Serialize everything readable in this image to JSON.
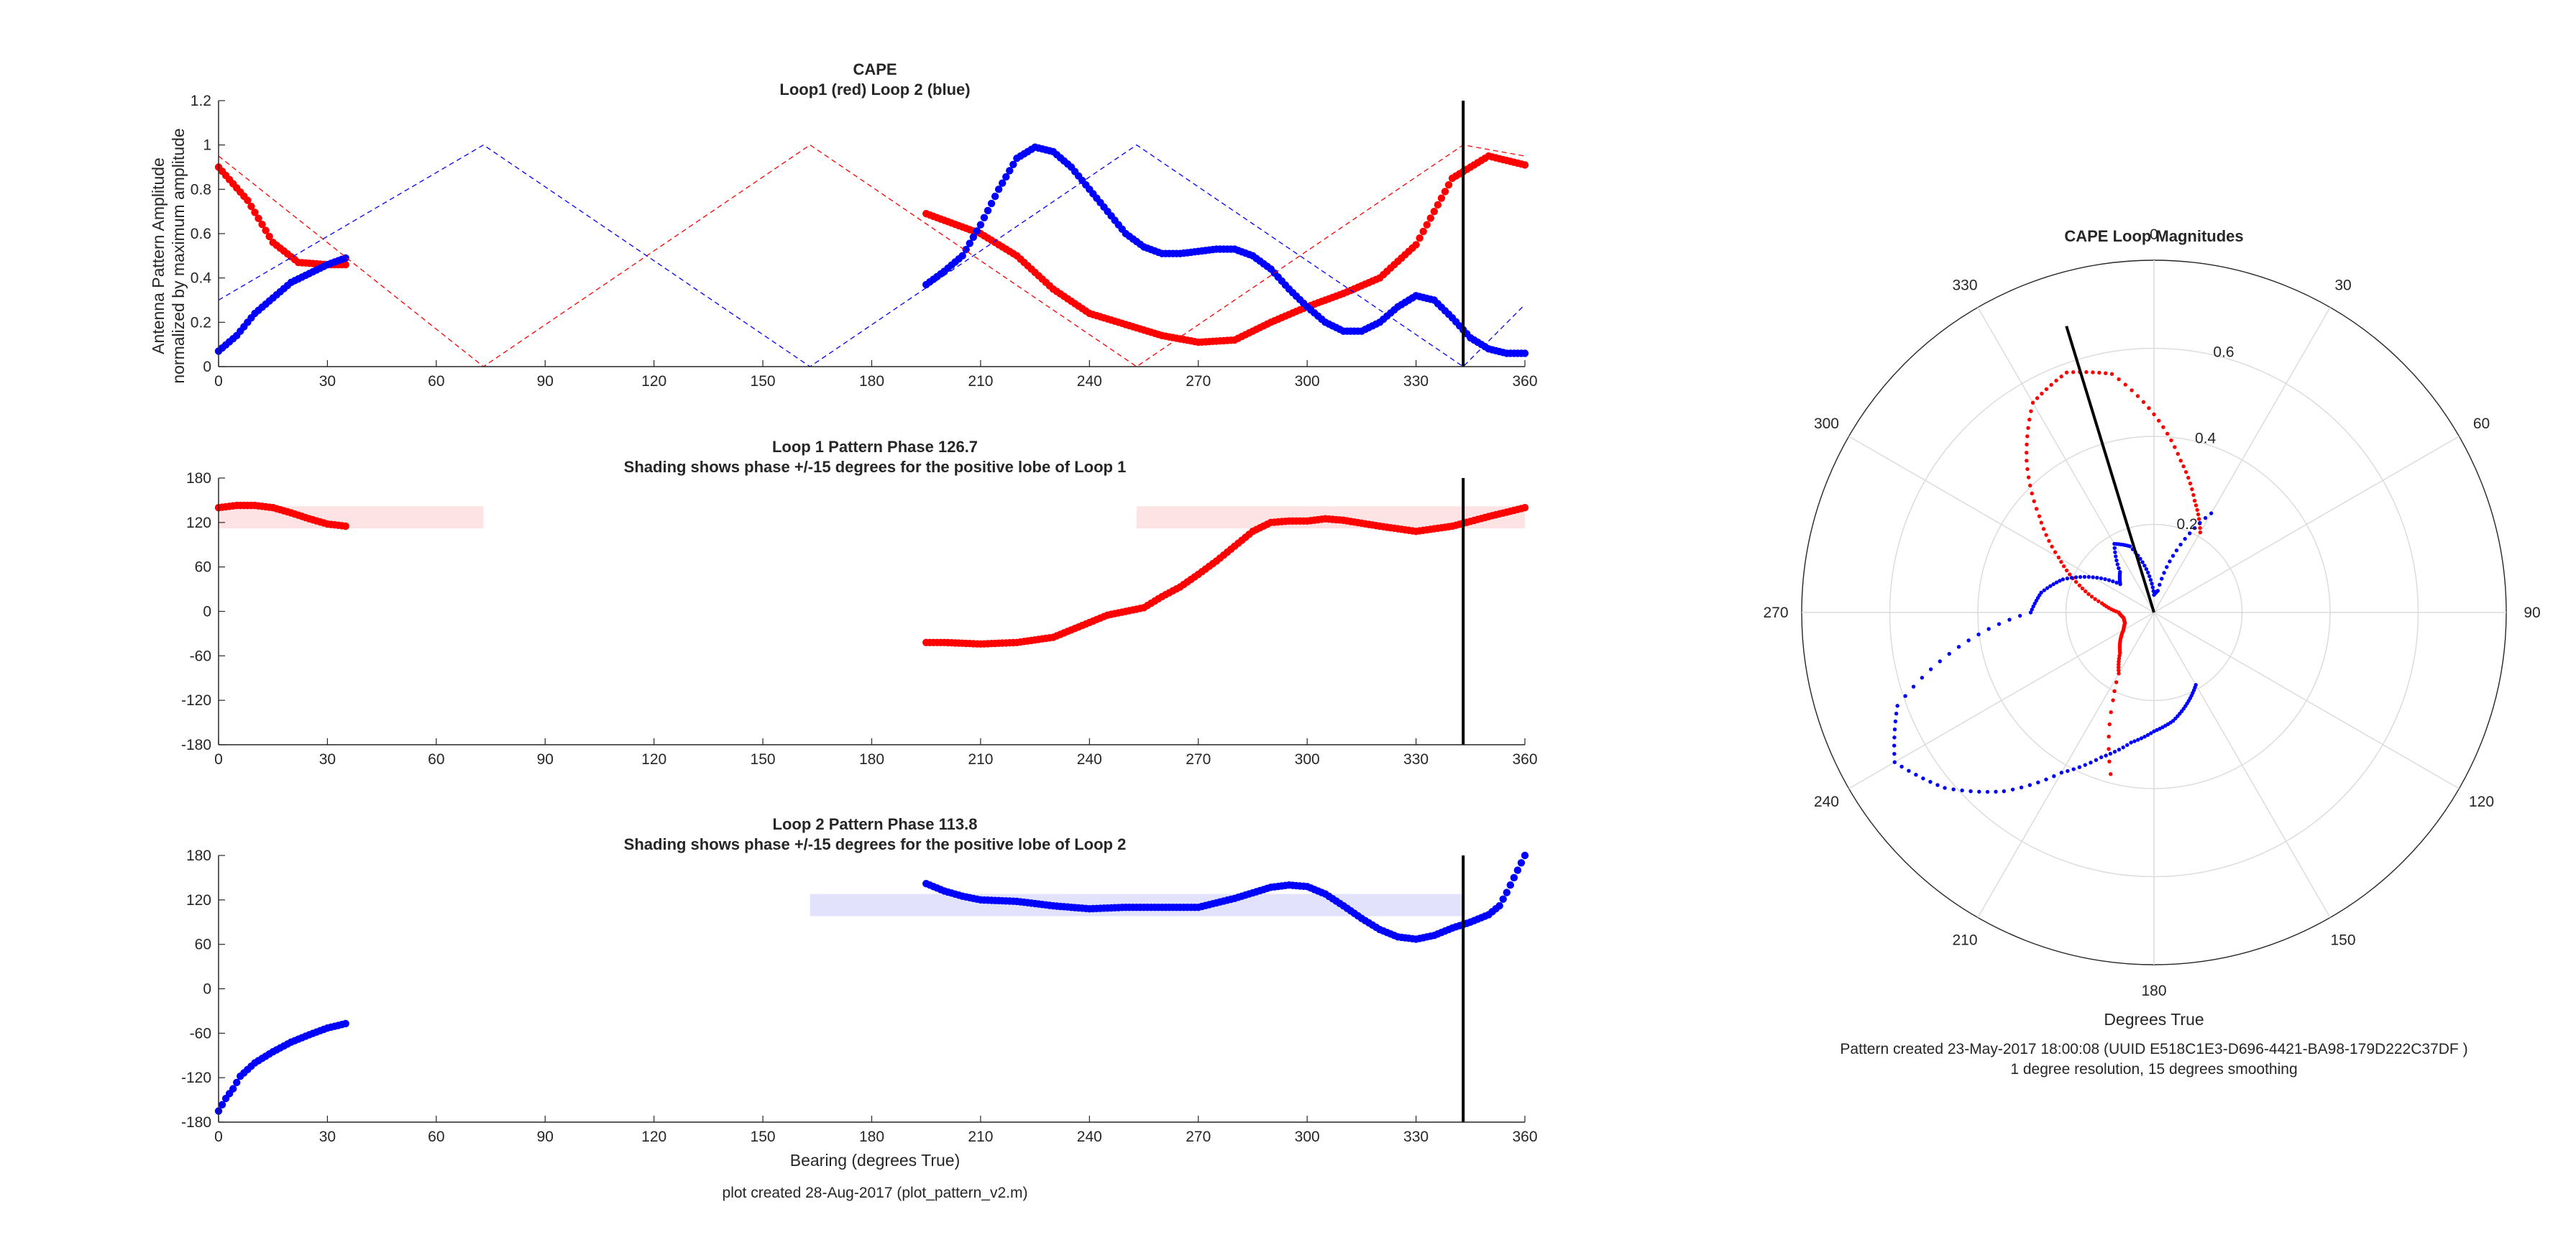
{
  "chart_data": [
    {
      "id": "magnitude",
      "type": "scatter",
      "title": "CAPE",
      "subtitle": "Loop1 (red) Loop 2 (blue)",
      "xlabel": "",
      "ylabel": [
        "Antenna Pattern Amplitude",
        "normalized by maximum amplitude"
      ],
      "xlim": [
        0,
        360
      ],
      "ylim": [
        0,
        1.2
      ],
      "xticks": [
        0,
        30,
        60,
        90,
        120,
        150,
        180,
        210,
        240,
        270,
        300,
        330,
        360
      ],
      "yticks": [
        0,
        0.2,
        0.4,
        0.6,
        0.8,
        1,
        1.2
      ],
      "xtick_labels": [
        "0",
        "30",
        "60",
        "90",
        "120",
        "150",
        "180",
        "210",
        "240",
        "270",
        "300",
        "330",
        "360"
      ],
      "ytick_labels": [
        "0",
        "0.2",
        "0.4",
        "0.6",
        "0.8",
        "1",
        "1.2"
      ],
      "grid": false,
      "bearing_marker": 343,
      "series": [
        {
          "color": "#ff0000",
          "style": "markers",
          "x": [
            0,
            8,
            15,
            22,
            30,
            35
          ],
          "y": [
            0.9,
            0.75,
            0.56,
            0.47,
            0.46,
            0.46
          ]
        },
        {
          "color": "#ff0000",
          "style": "markers",
          "x": [
            195,
            210,
            220,
            230,
            240,
            250,
            260,
            270,
            280,
            290,
            300,
            310,
            320,
            330,
            340,
            350,
            360
          ],
          "y": [
            0.69,
            0.6,
            0.5,
            0.35,
            0.24,
            0.19,
            0.14,
            0.11,
            0.12,
            0.2,
            0.27,
            0.33,
            0.4,
            0.55,
            0.85,
            0.95,
            0.91
          ]
        },
        {
          "color": "#0000ff",
          "style": "markers",
          "x": [
            0,
            5,
            10,
            20,
            30,
            35
          ],
          "y": [
            0.07,
            0.14,
            0.24,
            0.38,
            0.46,
            0.49
          ]
        },
        {
          "color": "#0000ff",
          "style": "markers",
          "x": [
            195,
            200,
            205,
            210,
            215,
            220,
            225,
            230,
            235,
            240,
            245,
            250,
            255,
            260,
            265,
            270,
            275,
            280,
            285,
            290,
            295,
            300,
            305,
            310,
            315,
            320,
            325,
            330,
            335,
            340,
            345,
            350,
            355,
            360
          ],
          "y": [
            0.37,
            0.43,
            0.5,
            0.64,
            0.8,
            0.94,
            0.99,
            0.97,
            0.9,
            0.8,
            0.7,
            0.6,
            0.54,
            0.51,
            0.51,
            0.52,
            0.53,
            0.53,
            0.5,
            0.44,
            0.35,
            0.27,
            0.2,
            0.16,
            0.16,
            0.2,
            0.27,
            0.32,
            0.3,
            0.22,
            0.13,
            0.08,
            0.06,
            0.06
          ]
        },
        {
          "color": "#ff0000",
          "style": "dashed",
          "x": [
            0,
            73,
            163,
            253,
            343,
            360
          ],
          "y": [
            0.95,
            0,
            1,
            0,
            1,
            0.95
          ]
        },
        {
          "color": "#0000ff",
          "style": "dashed",
          "x": [
            0,
            73,
            163,
            253,
            343,
            360
          ],
          "y": [
            0.3,
            1,
            0,
            1,
            0,
            0.28
          ]
        }
      ]
    },
    {
      "id": "loop1",
      "type": "scatter",
      "title": "Loop 1 Pattern Phase 126.7",
      "subtitle": "Shading shows phase +/-15 degrees for the positive lobe of Loop 1",
      "xlim": [
        0,
        360
      ],
      "ylim": [
        -180,
        180
      ],
      "xticks": [
        0,
        30,
        60,
        90,
        120,
        150,
        180,
        210,
        240,
        270,
        300,
        330,
        360
      ],
      "yticks": [
        -180,
        -120,
        -60,
        0,
        60,
        120,
        180
      ],
      "xtick_labels": [
        "0",
        "30",
        "60",
        "90",
        "120",
        "150",
        "180",
        "210",
        "240",
        "270",
        "300",
        "330",
        "360"
      ],
      "ytick_labels": [
        "-180",
        "-120",
        "-60",
        "0",
        "60",
        "120",
        "180"
      ],
      "grid": false,
      "bearing_marker": 343,
      "shading": {
        "color": "#fde3e3",
        "y": [
          112,
          142
        ],
        "ranges": [
          [
            0,
            73
          ],
          [
            253,
            360
          ]
        ]
      },
      "series": [
        {
          "color": "#ff0000",
          "style": "markers",
          "x": [
            0,
            5,
            10,
            15,
            20,
            25,
            30,
            35
          ],
          "y": [
            140,
            143,
            143,
            140,
            133,
            125,
            118,
            115
          ]
        },
        {
          "color": "#ff0000",
          "style": "markers",
          "x": [
            195,
            200,
            210,
            220,
            230,
            240,
            245,
            250,
            255,
            260,
            265,
            270,
            275,
            280,
            285,
            290,
            295,
            300,
            305,
            310,
            320,
            330,
            340,
            350,
            360
          ],
          "y": [
            -42,
            -42,
            -44,
            -42,
            -35,
            -15,
            -5,
            0,
            5,
            20,
            33,
            50,
            68,
            88,
            108,
            120,
            122,
            122,
            125,
            123,
            115,
            108,
            115,
            128,
            140
          ]
        }
      ]
    },
    {
      "id": "loop2",
      "type": "scatter",
      "title": "Loop 2 Pattern Phase 113.8",
      "subtitle": "Shading shows phase +/-15 degrees for the positive lobe of Loop 2",
      "xlabel": "Bearing (degrees True)",
      "xlim": [
        0,
        360
      ],
      "ylim": [
        -180,
        180
      ],
      "xticks": [
        0,
        30,
        60,
        90,
        120,
        150,
        180,
        210,
        240,
        270,
        300,
        330,
        360
      ],
      "yticks": [
        -180,
        -120,
        -60,
        0,
        60,
        120,
        180
      ],
      "xtick_labels": [
        "0",
        "30",
        "60",
        "90",
        "120",
        "150",
        "180",
        "210",
        "240",
        "270",
        "300",
        "330",
        "360"
      ],
      "ytick_labels": [
        "-180",
        "-120",
        "-60",
        "0",
        "60",
        "120",
        "180"
      ],
      "grid": false,
      "bearing_marker": 343,
      "shading": {
        "color": "#e2e2fc",
        "y": [
          98,
          128
        ],
        "ranges": [
          [
            163,
            343
          ]
        ]
      },
      "series": [
        {
          "color": "#0000ff",
          "style": "markers",
          "x": [
            0,
            2,
            4,
            6,
            10,
            15,
            20,
            25,
            30,
            35
          ],
          "y": [
            -165,
            -148,
            -135,
            -118,
            -100,
            -85,
            -72,
            -62,
            -53,
            -47
          ]
        },
        {
          "color": "#0000ff",
          "style": "markers",
          "x": [
            195,
            200,
            205,
            210,
            220,
            230,
            240,
            250,
            260,
            270,
            280,
            290,
            295,
            300,
            305,
            310,
            315,
            320,
            325,
            330,
            335,
            340,
            345,
            350,
            353,
            355,
            357,
            359,
            360
          ],
          "y": [
            142,
            132,
            125,
            120,
            118,
            112,
            108,
            110,
            110,
            110,
            122,
            137,
            140,
            138,
            128,
            112,
            95,
            80,
            70,
            67,
            72,
            82,
            90,
            100,
            112,
            130,
            150,
            170,
            180
          ]
        }
      ]
    },
    {
      "id": "polar",
      "type": "scatter",
      "title": "CAPE Loop Magnitudes",
      "xlabel": "Degrees True",
      "theta_ticks": [
        0,
        30,
        60,
        90,
        120,
        150,
        180,
        210,
        240,
        270,
        300,
        330
      ],
      "theta_labels": [
        "0",
        "30",
        "60",
        "90",
        "120",
        "150",
        "180",
        "210",
        "240",
        "270",
        "300",
        "330"
      ],
      "r_ticks": [
        0.2,
        0.4,
        0.6
      ],
      "r_labels": [
        "0.2",
        "0.4",
        "0.6"
      ],
      "rlim": [
        0,
        0.8
      ],
      "bearing_marker": 343,
      "series": [
        {
          "color": "#ff0000",
          "style": "dotted",
          "theta": [
            195,
            200,
            205,
            210,
            220,
            230,
            240,
            250,
            260,
            270,
            280,
            290,
            300,
            310,
            320,
            330,
            340,
            350,
            0,
            10,
            20,
            30
          ],
          "r": [
            0.38,
            0.3,
            0.22,
            0.16,
            0.12,
            0.1,
            0.08,
            0.07,
            0.07,
            0.08,
            0.12,
            0.18,
            0.25,
            0.34,
            0.45,
            0.55,
            0.58,
            0.55,
            0.45,
            0.35,
            0.27,
            0.21
          ]
        },
        {
          "color": "#0000ff",
          "style": "dotted",
          "theta": [
            150,
            160,
            170,
            180,
            190,
            200,
            210,
            220,
            230,
            240,
            250,
            260,
            270,
            280,
            290,
            300,
            310,
            320,
            330,
            340,
            350,
            0,
            10,
            20,
            30
          ],
          "r": [
            0.19,
            0.22,
            0.25,
            0.27,
            0.3,
            0.35,
            0.42,
            0.53,
            0.62,
            0.68,
            0.62,
            0.45,
            0.28,
            0.26,
            0.22,
            0.16,
            0.1,
            0.12,
            0.18,
            0.16,
            0.1,
            0.04,
            0.05,
            0.15,
            0.26
          ]
        }
      ]
    }
  ],
  "footer_left": "plot created 28-Aug-2017 (plot_pattern_v2.m)",
  "footer_right": [
    "Pattern created 23-May-2017 18:00:08 (UUID E518C1E3-D696-4421-BA98-179D222C37DF )",
    "1 degree resolution, 15 degrees smoothing"
  ]
}
